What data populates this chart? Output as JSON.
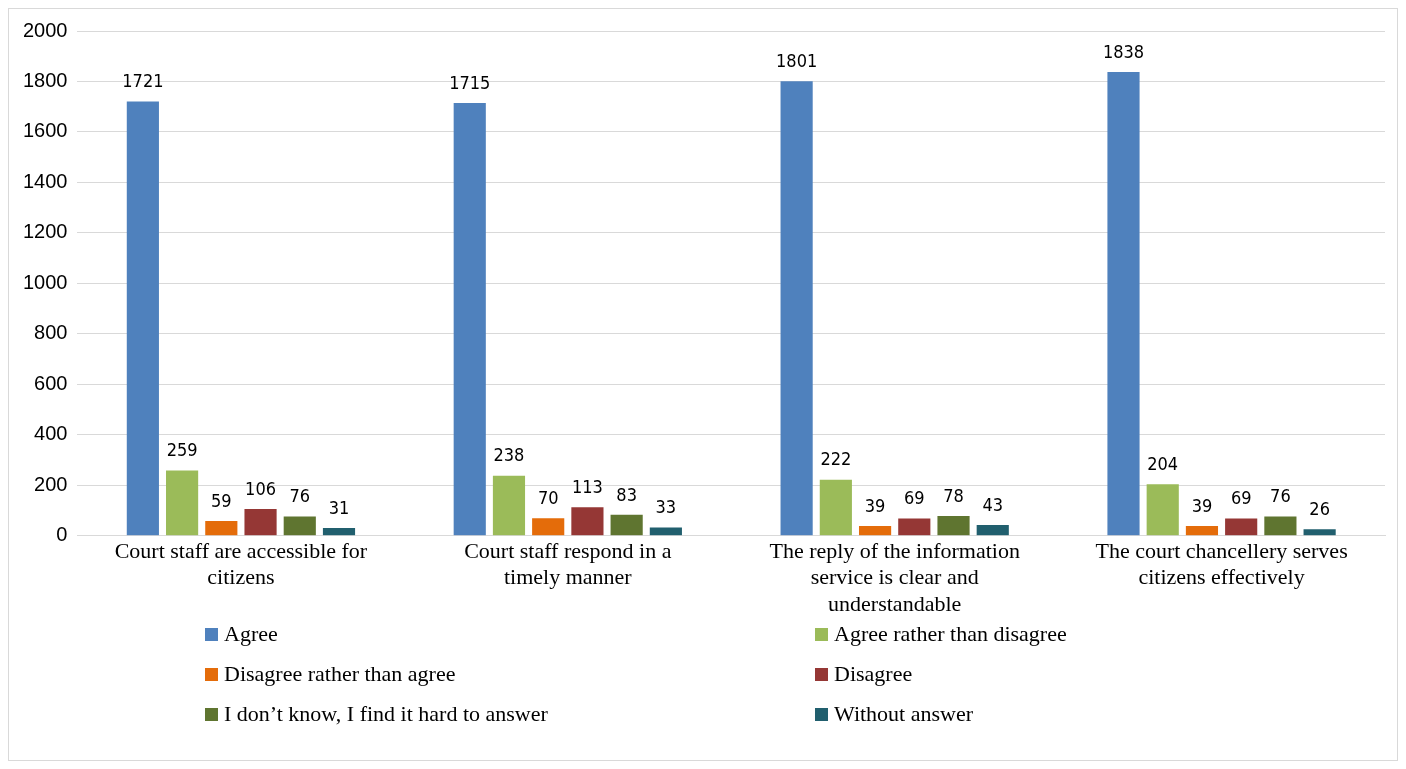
{
  "chart_data": {
    "type": "bar",
    "categories": [
      "Court staff are accessible for citizens",
      "Court staff respond in a timely manner",
      "The reply of the information service is clear and understandable",
      "The court chancellery serves citizens effectively"
    ],
    "series": [
      {
        "name": "Agree",
        "color": "#4f81bd",
        "values": [
          1721,
          1715,
          1801,
          1838
        ]
      },
      {
        "name": "Agree rather than disagree",
        "color": "#9bbb59",
        "values": [
          259,
          238,
          222,
          204
        ]
      },
      {
        "name": "Disagree rather than agree",
        "color": "#e46c0a",
        "values": [
          59,
          70,
          39,
          39
        ]
      },
      {
        "name": "Disagree",
        "color": "#953735",
        "values": [
          106,
          113,
          69,
          69
        ]
      },
      {
        "name": "I don’t know, I find it hard to answer",
        "color": "#5f7530",
        "values": [
          76,
          83,
          78,
          76
        ]
      },
      {
        "name": "Without answer",
        "color": "#215f6e",
        "values": [
          31,
          33,
          43,
          26
        ]
      }
    ],
    "ylim": [
      0,
      2000
    ],
    "yticks": [
      0,
      200,
      400,
      600,
      800,
      1000,
      1200,
      1400,
      1600,
      1800,
      2000
    ],
    "grid": "y",
    "legend": "bottom",
    "data_labels": true
  }
}
